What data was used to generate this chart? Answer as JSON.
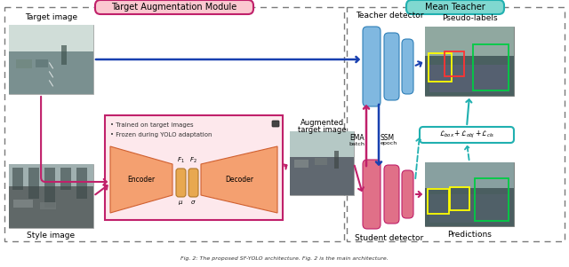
{
  "title_left": "Target Augmentation Module",
  "title_right": "Mean Teacher",
  "label_target_image": "Target image",
  "label_style_image": "Style image",
  "label_augmented": "Augmented\ntarget image",
  "label_teacher": "Teacher detector",
  "label_student": "Student detector",
  "label_pseudo": "Pseudo-labels",
  "label_predictions": "Predictions",
  "label_encoder": "Encoder",
  "label_decoder": "Decoder",
  "label_ema": "EMA",
  "label_ema_sub": "batch",
  "label_ssm": "SSM",
  "label_ssm_sub": "epoch",
  "label_loss": "$\\mathcal{L}_{box}+\\mathcal{L}_{obj}+\\mathcal{L}_{cls}$",
  "label_f1": "$F_1$",
  "label_f2": "$F_2$",
  "label_mu": "$\\mu$",
  "label_sigma": "$\\sigma$",
  "bullet1": "Trained on target images",
  "bullet2": "Frozen during YOLO adaptation",
  "bg_color": "#ffffff",
  "dashed_box_color": "#7a7a7a",
  "pink_color": "#c0206a",
  "salmon_color": "#f4a070",
  "light_blue": "#80b8e0",
  "teal_color": "#20b0b0",
  "title_left_bg": "#fbc8d0",
  "title_right_bg": "#80d8d0",
  "inner_box_border": "#c0206a",
  "arrow_blue": "#1840b0",
  "arrow_pink": "#c0206a",
  "arrow_teal": "#20b0b0"
}
